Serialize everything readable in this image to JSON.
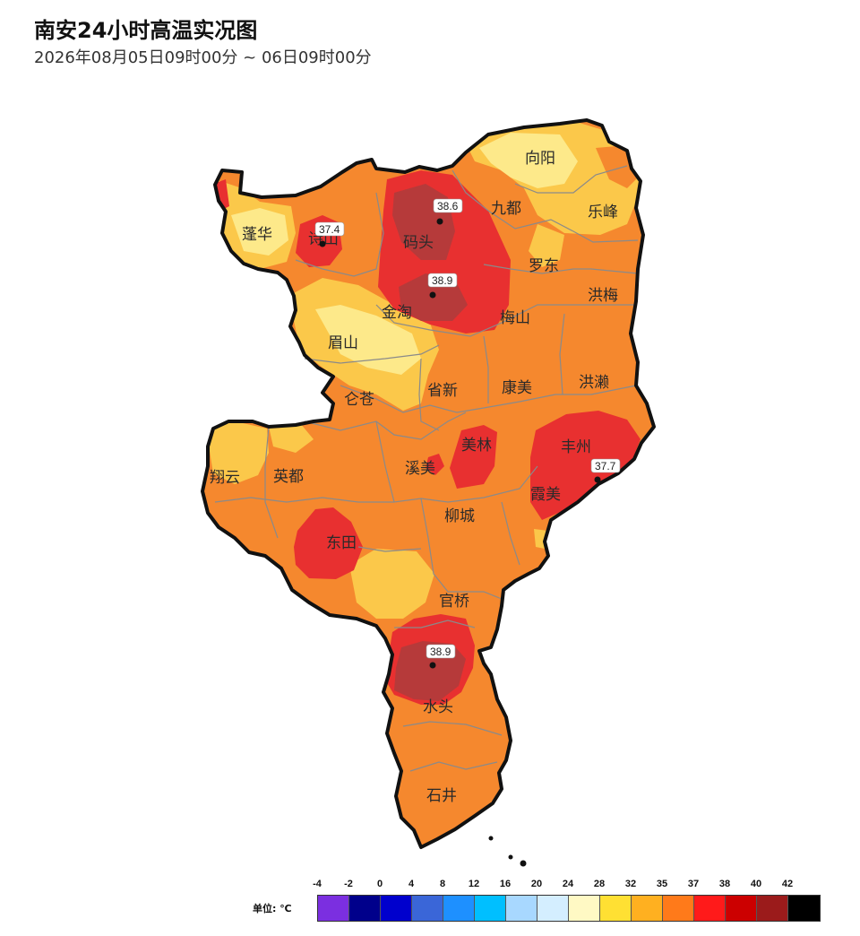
{
  "header": {
    "title": "南安24小时高温实况图",
    "subtitle": "2026年08月05日09时00分 ~ 06日09时00分"
  },
  "places": [
    {
      "name": "向阳"
    },
    {
      "name": "九都"
    },
    {
      "name": "乐峰"
    },
    {
      "name": "蓬华"
    },
    {
      "name": "诗山"
    },
    {
      "name": "码头"
    },
    {
      "name": "罗东"
    },
    {
      "name": "洪梅"
    },
    {
      "name": "金淘"
    },
    {
      "name": "梅山"
    },
    {
      "name": "眉山"
    },
    {
      "name": "省新"
    },
    {
      "name": "康美"
    },
    {
      "name": "洪濑"
    },
    {
      "name": "仑苍"
    },
    {
      "name": "美林"
    },
    {
      "name": "丰州"
    },
    {
      "name": "翔云"
    },
    {
      "name": "英都"
    },
    {
      "name": "溪美"
    },
    {
      "name": "霞美"
    },
    {
      "name": "柳城"
    },
    {
      "name": "东田"
    },
    {
      "name": "官桥"
    },
    {
      "name": "水头"
    },
    {
      "name": "石井"
    }
  ],
  "stations": [
    {
      "value": "38.6"
    },
    {
      "value": "37.4"
    },
    {
      "value": "38.9"
    },
    {
      "value": "37.7"
    },
    {
      "value": "38.9"
    }
  ],
  "legend": {
    "unit_label": "单位: ℃",
    "ticks": [
      "-4",
      "-2",
      "0",
      "4",
      "8",
      "12",
      "16",
      "20",
      "24",
      "28",
      "32",
      "35",
      "37",
      "38",
      "40",
      "42"
    ],
    "colors": [
      "#7b2fe0",
      "#00008b",
      "#0000cd",
      "#3a66d8",
      "#1e90ff",
      "#00bfff",
      "#a8d8ff",
      "#d4eeff",
      "#fff9c4",
      "#ffe033",
      "#ffb020",
      "#ff7a1a",
      "#ff1a1a",
      "#cc0000",
      "#9b1b1b",
      "#000000"
    ]
  },
  "map_colors": {
    "base": "#f5882e",
    "warm": "#fbc84a",
    "light": "#fde98a",
    "hot": "#e83030",
    "hotter": "#b63a3a",
    "border": "#111111",
    "internal": "#8a8a8a"
  }
}
